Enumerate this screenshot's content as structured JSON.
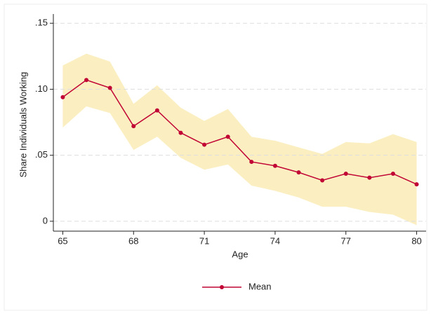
{
  "chart_data": {
    "type": "line",
    "y_label": "Share Individuals Working",
    "x_label": "Age",
    "x": [
      65,
      66,
      67,
      68,
      69,
      70,
      71,
      72,
      73,
      74,
      75,
      76,
      77,
      78,
      79,
      80
    ],
    "series": [
      {
        "name": "Mean",
        "color": "#c10534",
        "values": [
          0.094,
          0.107,
          0.101,
          0.072,
          0.084,
          0.067,
          0.058,
          0.064,
          0.045,
          0.042,
          0.037,
          0.031,
          0.036,
          0.033,
          0.036,
          0.028
        ]
      }
    ],
    "band": {
      "color": "#fbefc2",
      "upper": [
        0.118,
        0.127,
        0.121,
        0.089,
        0.103,
        0.086,
        0.076,
        0.085,
        0.064,
        0.061,
        0.056,
        0.051,
        0.06,
        0.059,
        0.066,
        0.06
      ],
      "lower": [
        0.071,
        0.087,
        0.082,
        0.054,
        0.064,
        0.048,
        0.039,
        0.043,
        0.027,
        0.023,
        0.018,
        0.011,
        0.011,
        0.007,
        0.005,
        -0.003
      ]
    },
    "xlim": [
      64.6,
      80.4
    ],
    "xticks": [
      65,
      68,
      71,
      74,
      77,
      80
    ],
    "ylim": [
      -0.0075,
      0.157
    ],
    "yticks": [
      0,
      {
        "value": 0.05,
        "label": ".05"
      },
      {
        "value": 0.1,
        "label": ".10"
      },
      {
        "value": 0.15,
        "label": ".15"
      }
    ],
    "grid": true,
    "legend": "bottom"
  }
}
